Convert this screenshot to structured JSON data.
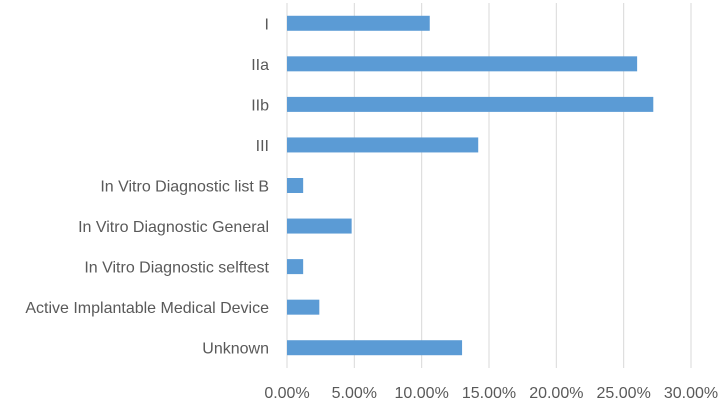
{
  "chart_data": {
    "type": "bar",
    "orientation": "horizontal",
    "categories": [
      "I",
      "IIa",
      "IIb",
      "III",
      "In Vitro Diagnostic list B",
      "In Vitro Diagnostic General",
      "In Vitro Diagnostic selftest",
      "Active Implantable Medical Device",
      "Unknown"
    ],
    "values": [
      10.6,
      26.0,
      27.2,
      14.2,
      1.2,
      4.8,
      1.2,
      2.4,
      13.0
    ],
    "xlim": [
      0,
      30
    ],
    "x_ticks": [
      "0.00%",
      "5.00%",
      "10.00%",
      "15.00%",
      "20.00%",
      "25.00%",
      "30.00%"
    ],
    "title": "",
    "xlabel": "",
    "ylabel": "",
    "grid": "vertical",
    "legend": "none",
    "bar_color": "#5b9bd5",
    "grid_color": "#d9d9d9",
    "text_color": "#595959"
  }
}
